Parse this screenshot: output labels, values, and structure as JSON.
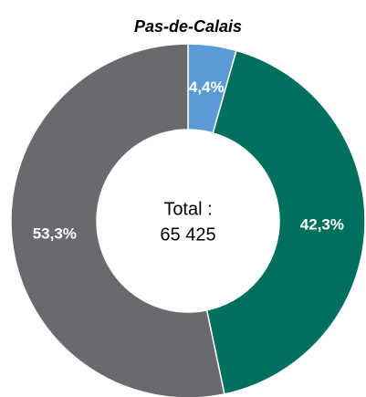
{
  "chart_data": {
    "type": "pie",
    "title": "Pas-de-Calais",
    "values": [
      4.4,
      42.3,
      53.3
    ],
    "value_labels": [
      "4,4%",
      "42,3%",
      "53,3%"
    ],
    "colors": [
      "#5b9bd5",
      "#00705e",
      "#6b696e"
    ],
    "center_text": [
      "Total :",
      "65 425"
    ]
  }
}
